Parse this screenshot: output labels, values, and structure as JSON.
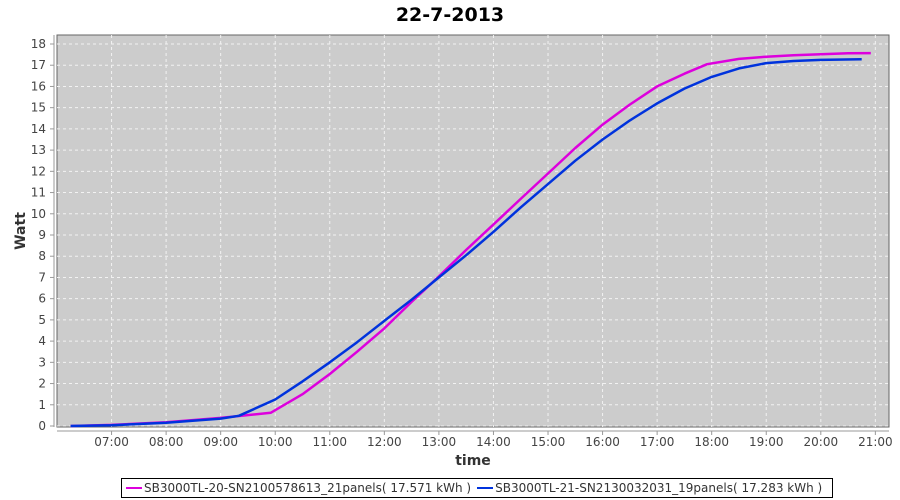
{
  "chart_data": {
    "type": "line",
    "title": "22-7-2013",
    "xlabel": "time",
    "ylabel": "Watt",
    "xlim": [
      "06:00",
      "21:15"
    ],
    "ylim": [
      0,
      18.4
    ],
    "xticks": [
      "07:00",
      "08:00",
      "09:00",
      "10:00",
      "11:00",
      "12:00",
      "13:00",
      "14:00",
      "15:00",
      "16:00",
      "17:00",
      "18:00",
      "19:00",
      "20:00",
      "21:00"
    ],
    "yticks": [
      0,
      1,
      2,
      3,
      4,
      5,
      6,
      7,
      8,
      9,
      10,
      11,
      12,
      13,
      14,
      15,
      16,
      17,
      18
    ],
    "grid": true,
    "background": "#cccccc",
    "legend_placement": "bottom",
    "series": [
      {
        "name": "SB3000TL-20-SN2100578613_21panels( 17.571 kWh )",
        "color": "#dd00dd",
        "x": [
          "06:15",
          "07:00",
          "08:00",
          "09:00",
          "09:55",
          "10:30",
          "11:00",
          "11:30",
          "12:00",
          "12:30",
          "13:00",
          "13:30",
          "14:00",
          "14:30",
          "15:00",
          "15:30",
          "16:00",
          "16:30",
          "17:00",
          "17:30",
          "17:55",
          "18:30",
          "19:00",
          "19:30",
          "20:00",
          "20:30",
          "20:55"
        ],
        "y": [
          0,
          0.05,
          0.18,
          0.38,
          0.62,
          1.5,
          2.45,
          3.5,
          4.6,
          5.85,
          7.05,
          8.3,
          9.5,
          10.7,
          11.9,
          13.1,
          14.2,
          15.15,
          16.0,
          16.6,
          17.05,
          17.3,
          17.4,
          17.47,
          17.52,
          17.56,
          17.57
        ]
      },
      {
        "name": "SB3000TL-21-SN2130032031_19panels( 17.283 kWh )",
        "color": "#0033dd",
        "x": [
          "06:15",
          "07:00",
          "08:00",
          "09:00",
          "09:20",
          "10:00",
          "10:30",
          "11:00",
          "11:30",
          "12:00",
          "12:30",
          "13:00",
          "13:30",
          "14:00",
          "14:30",
          "15:00",
          "15:30",
          "16:00",
          "16:30",
          "17:00",
          "17:30",
          "18:00",
          "18:30",
          "19:00",
          "19:30",
          "20:00",
          "20:45"
        ],
        "y": [
          0,
          0.04,
          0.15,
          0.35,
          0.48,
          1.25,
          2.1,
          3.0,
          3.95,
          4.95,
          5.95,
          7.0,
          8.05,
          9.15,
          10.3,
          11.4,
          12.5,
          13.5,
          14.4,
          15.2,
          15.9,
          16.45,
          16.85,
          17.1,
          17.2,
          17.25,
          17.28
        ]
      }
    ]
  }
}
